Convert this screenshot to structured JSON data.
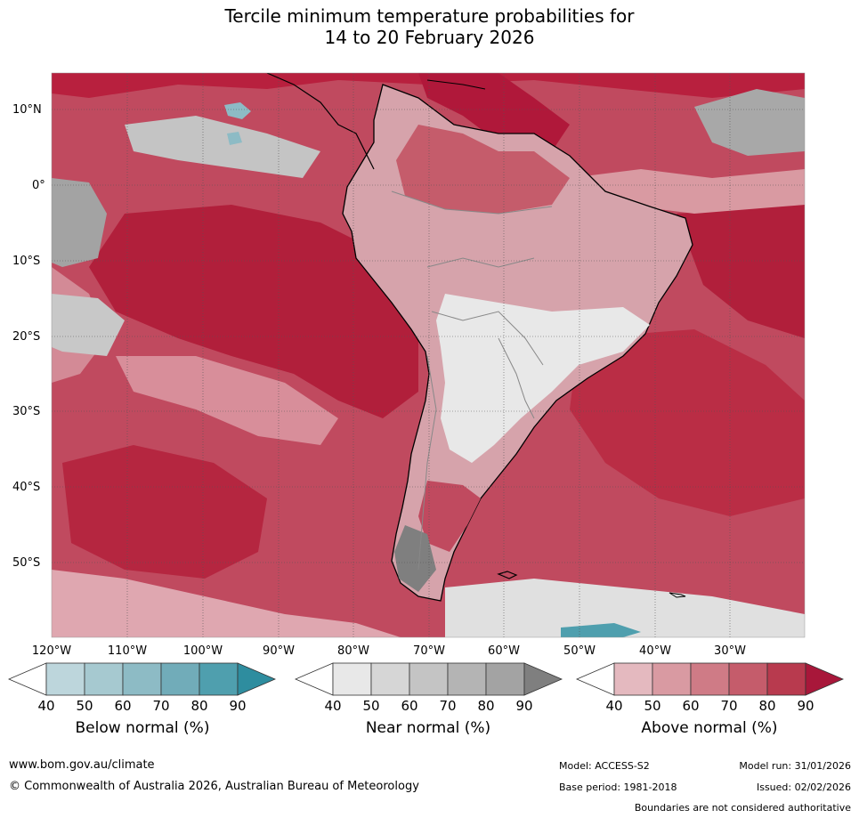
{
  "title": {
    "line1": "Tercile minimum temperature probabilities for",
    "line2": "14 to 20 February 2026"
  },
  "map": {
    "lat_labels": [
      "10°N",
      "0°",
      "10°S",
      "20°S",
      "30°S",
      "40°S",
      "50°S"
    ],
    "lon_labels": [
      "120°W",
      "110°W",
      "100°W",
      "90°W",
      "80°W",
      "70°W",
      "60°W",
      "50°W",
      "40°W",
      "30°W"
    ]
  },
  "colorbars": [
    {
      "title": "Below normal (%)",
      "ticks": [
        "40",
        "50",
        "60",
        "70",
        "80",
        "90"
      ],
      "colors": [
        "#bdd6dc",
        "#a6c9d0",
        "#8dbbc5",
        "#71acb9",
        "#4f9fae",
        "#2e8d9f"
      ]
    },
    {
      "title": "Near normal (%)",
      "ticks": [
        "40",
        "50",
        "60",
        "70",
        "80",
        "90"
      ],
      "colors": [
        "#e8e8e8",
        "#d6d6d6",
        "#c4c4c4",
        "#b4b4b4",
        "#a3a3a3",
        "#7f7f7f"
      ]
    },
    {
      "title": "Above normal (%)",
      "ticks": [
        "40",
        "50",
        "60",
        "70",
        "80",
        "90"
      ],
      "colors": [
        "#e4b9bf",
        "#d99aa2",
        "#cf7b86",
        "#c55c6b",
        "#b83a4e",
        "#a8173a"
      ]
    }
  ],
  "footer": {
    "website": "www.bom.gov.au/climate",
    "copyright": "© Commonwealth of Australia 2026, Australian Bureau of Meteorology",
    "model": "Model: ACCESS-S2",
    "model_run": "Model run: 31/01/2026",
    "base_period": "Base period: 1981-2018",
    "issued": "Issued: 02/02/2026",
    "disclaimer": "Boundaries are not considered authoritative"
  }
}
